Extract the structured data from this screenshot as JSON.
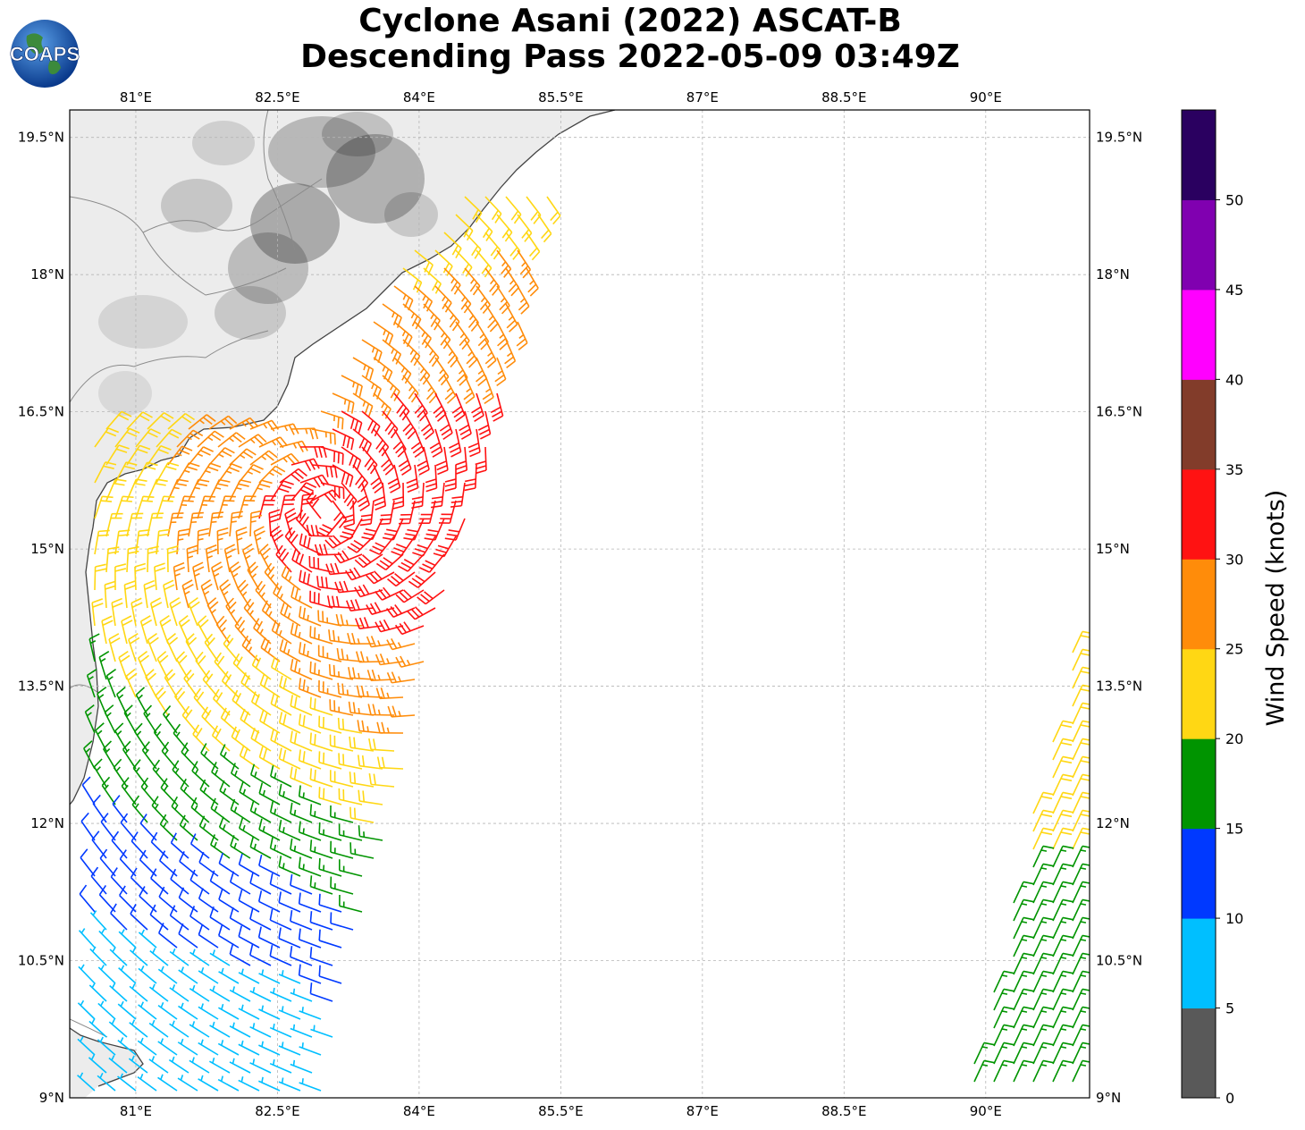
{
  "title": {
    "line1": "Cyclone Asani (2022) ASCAT-B",
    "line2": "Descending Pass 2022-05-09 03:49Z"
  },
  "logo": {
    "text": "COAPS",
    "icon": "globe-logo"
  },
  "map": {
    "lon_range": [
      80.3,
      91.1
    ],
    "lat_range": [
      9.0,
      19.8
    ],
    "lon_ticks": [
      81.0,
      82.5,
      84.0,
      85.5,
      87.0,
      88.5,
      90.0
    ],
    "lon_tick_labels": [
      "81°E",
      "82.5°E",
      "84°E",
      "85.5°E",
      "87°E",
      "88.5°E",
      "90°E"
    ],
    "lat_ticks": [
      9.0,
      10.5,
      12.0,
      13.5,
      15.0,
      16.5,
      18.0,
      19.5
    ],
    "lat_tick_labels": [
      "9°N",
      "10.5°N",
      "12°N",
      "13.5°N",
      "15°N",
      "16.5°N",
      "18°N",
      "19.5°N"
    ],
    "gridlines": true,
    "land_color": "#ececec",
    "coast_color": "#444444"
  },
  "colorbar": {
    "label": "Wind Speed (knots)",
    "bounds": [
      0,
      5,
      10,
      15,
      20,
      25,
      30,
      35,
      40,
      45,
      50
    ],
    "tick_labels": [
      "0",
      "5",
      "10",
      "15",
      "20",
      "25",
      "30",
      "35",
      "40",
      "45",
      "50"
    ],
    "colors": [
      "#595959",
      "#00bfff",
      "#0039ff",
      "#009400",
      "#ffd714",
      "#ff8c0a",
      "#ff1212",
      "#823c2a",
      "#ff00ff",
      "#8000b0",
      "#2a0060"
    ]
  },
  "chart_data": {
    "type": "scatter",
    "title": "",
    "description_units": "wind barbs: longitude °E, latitude °N, speed knots",
    "swaths": [
      {
        "name": "",
        "lon": [
          80.3,
          85.3
        ],
        "lat": [
          9.0,
          19.0
        ]
      },
      {
        "name": "",
        "lon": [
          89.8,
          91.1
        ],
        "lat": [
          9.0,
          14.4
        ]
      }
    ],
    "wind_center": {
      "lon": 83.0,
      "lat": 15.4
    },
    "max_speed_knots": 35,
    "speed_range_knots": [
      5,
      35
    ]
  }
}
